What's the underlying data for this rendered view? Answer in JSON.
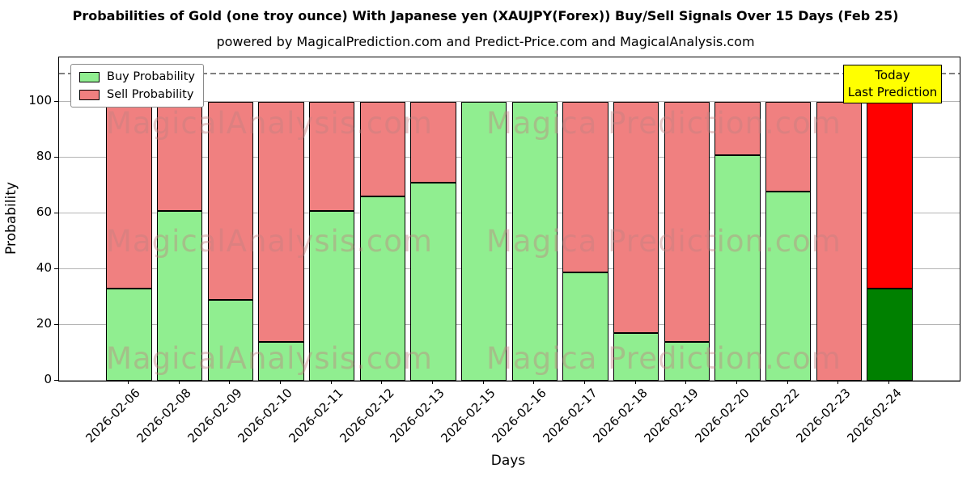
{
  "title": "Probabilities of Gold (one troy ounce) With Japanese yen (XAUJPY(Forex)) Buy/Sell Signals Over 15 Days (Feb 25)",
  "subtitle": "powered by MagicalPrediction.com and Predict-Price.com and MagicalAnalysis.com",
  "annotation": {
    "line1": "Today",
    "line2": "Last Prediction",
    "bg_color": "#ffff00"
  },
  "watermarks": {
    "left": "MagicalAnalysis.com",
    "right": "Magica Prediction.com"
  },
  "chart_data": {
    "type": "bar",
    "stacked": true,
    "title": "Probabilities of Gold (one troy ounce) With Japanese yen (XAUJPY(Forex)) Buy/Sell Signals Over 15 Days (Feb 25)",
    "xlabel": "Days",
    "ylabel": "Probability",
    "ylim": [
      0,
      116
    ],
    "yticks": [
      0,
      20,
      40,
      60,
      80,
      100
    ],
    "grid": "horizontal",
    "legend_position": "upper left",
    "threshold_line": {
      "y": 110,
      "style": "dashed",
      "color": "#808080"
    },
    "categories": [
      "2026-02-06",
      "2026-02-08",
      "2026-02-09",
      "2026-02-10",
      "2026-02-11",
      "2026-02-12",
      "2026-02-13",
      "2026-02-15",
      "2026-02-16",
      "2026-02-17",
      "2026-02-18",
      "2026-02-19",
      "2026-02-20",
      "2026-02-22",
      "2026-02-23",
      "2026-02-24"
    ],
    "series": [
      {
        "name": "Buy Probability",
        "color": "#90ee90",
        "values": [
          33,
          61,
          29,
          14,
          61,
          66,
          71,
          100,
          100,
          39,
          17,
          14,
          81,
          68,
          0,
          33
        ]
      },
      {
        "name": "Sell Probability",
        "color": "#f08080",
        "values": [
          67,
          39,
          71,
          86,
          39,
          34,
          29,
          0,
          0,
          61,
          83,
          86,
          19,
          32,
          100,
          67
        ]
      }
    ],
    "today_index": 15,
    "today_colors": {
      "buy": "#008000",
      "sell": "#ff0000"
    }
  }
}
